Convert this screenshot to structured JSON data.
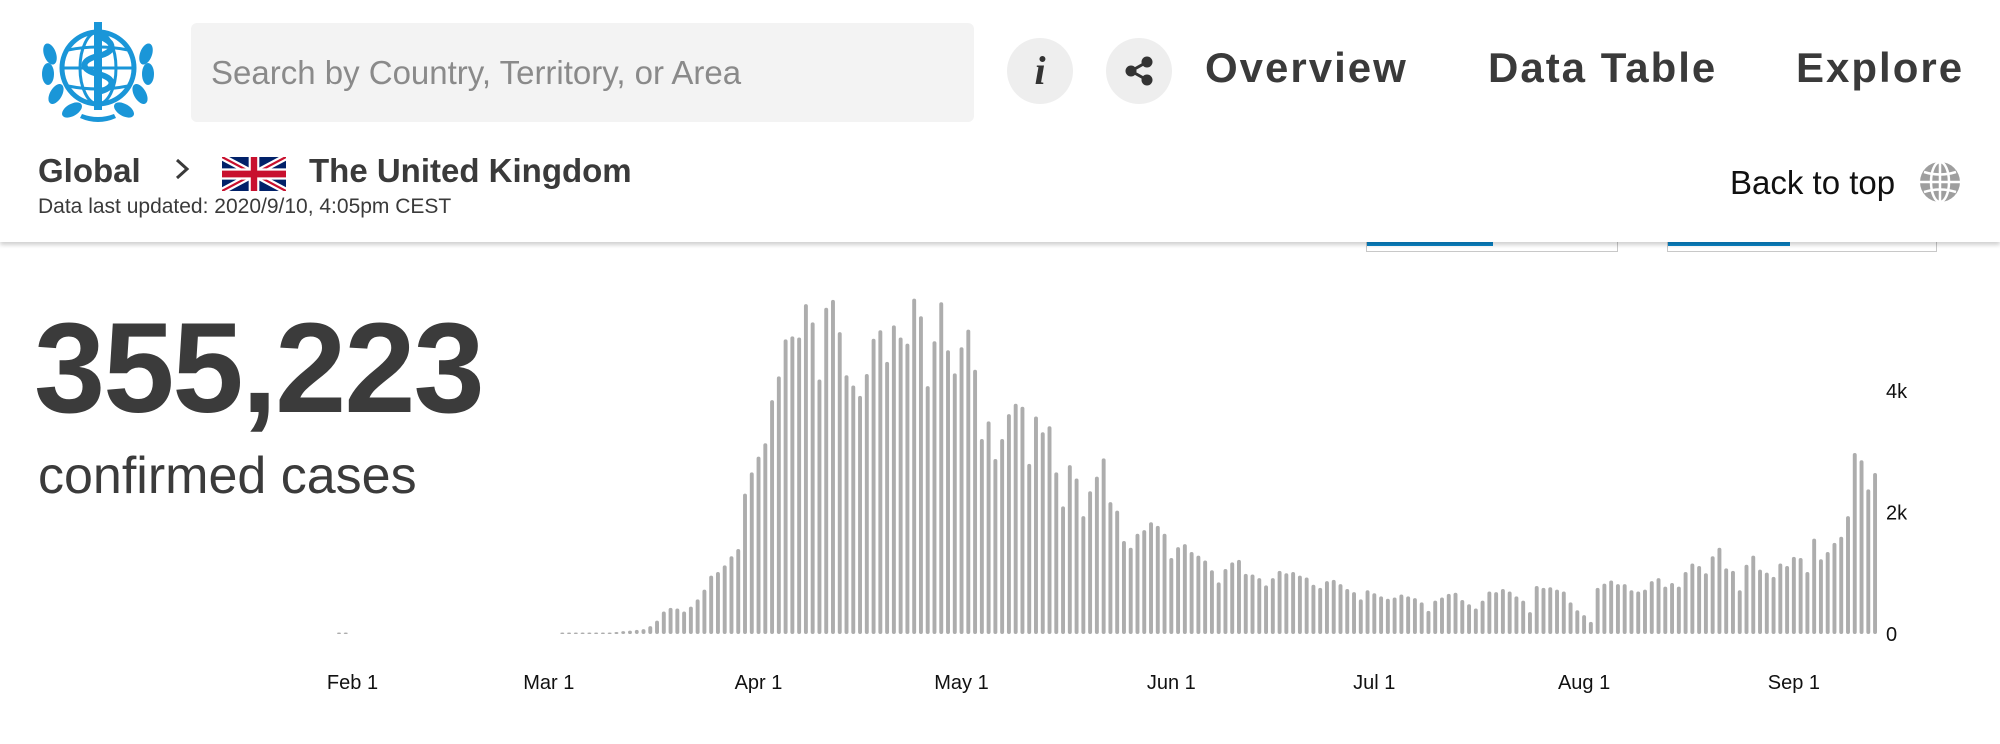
{
  "header": {
    "search_placeholder": "Search by Country, Territory, or Area",
    "nav": [
      {
        "label": "Overview"
      },
      {
        "label": "Data Table"
      },
      {
        "label": "Explore"
      }
    ],
    "icons": {
      "logo": "who-logo-icon",
      "info": "info-icon",
      "share": "share-icon",
      "back_to_top": "globe-icon",
      "separator": "chevron-right-icon",
      "flag": "uk-flag-icon"
    }
  },
  "breadcrumb": {
    "global": "Global",
    "country": "The United Kingdom",
    "updated": "Data last updated: 2020/9/10, 4:05pm CEST"
  },
  "back_to_top": "Back to top",
  "summary": {
    "count": "355,223",
    "caption": "confirmed cases"
  },
  "colors": {
    "accent": "#0a84c6",
    "bar": "#adadad",
    "text": "#3b3b3b"
  },
  "chart_data": {
    "type": "bar",
    "x_start": "2020-01-30",
    "x_end": "2020-09-09",
    "x_ticks": [
      {
        "date": "2020-02-01",
        "label": "Feb 1"
      },
      {
        "date": "2020-03-01",
        "label": "Mar 1"
      },
      {
        "date": "2020-04-01",
        "label": "Apr 1"
      },
      {
        "date": "2020-05-01",
        "label": "May 1"
      },
      {
        "date": "2020-06-01",
        "label": "Jun 1"
      },
      {
        "date": "2020-07-01",
        "label": "Jul 1"
      },
      {
        "date": "2020-08-01",
        "label": "Aug 1"
      },
      {
        "date": "2020-09-01",
        "label": "Sep 1"
      }
    ],
    "y_ticks": [
      {
        "value": 0,
        "label": "0"
      },
      {
        "value": 2000,
        "label": "2k"
      },
      {
        "value": 4000,
        "label": "4k"
      }
    ],
    "ylim": [
      0,
      5500
    ],
    "values": [
      2,
      2,
      0,
      0,
      0,
      0,
      0,
      0,
      0,
      0,
      0,
      0,
      0,
      0,
      0,
      0,
      0,
      0,
      0,
      0,
      0,
      0,
      0,
      0,
      0,
      0,
      0,
      0,
      0,
      0,
      0,
      0,
      0,
      1,
      3,
      5,
      5,
      7,
      12,
      18,
      25,
      33,
      48,
      55,
      68,
      80,
      130,
      220,
      370,
      430,
      420,
      370,
      450,
      570,
      730,
      960,
      1020,
      1130,
      1280,
      1400,
      2310,
      2660,
      2920,
      3140,
      3850,
      4240,
      4850,
      4900,
      4880,
      5430,
      5130,
      4190,
      5370,
      5500,
      4970,
      4260,
      4090,
      3920,
      4280,
      4860,
      5000,
      4480,
      5080,
      4880,
      4780,
      5520,
      5230,
      4080,
      4820,
      5460,
      4670,
      4290,
      4720,
      5010,
      4350,
      3210,
      3500,
      2880,
      3210,
      3620,
      3790,
      3740,
      2800,
      3580,
      3320,
      3420,
      2660,
      2100,
      2780,
      2560,
      1940,
      2350,
      2590,
      2890,
      2170,
      2030,
      1530,
      1420,
      1650,
      1710,
      1840,
      1780,
      1650,
      1250,
      1430,
      1480,
      1350,
      1290,
      1210,
      1050,
      850,
      1070,
      1180,
      1220,
      990,
      980,
      920,
      800,
      920,
      1040,
      1000,
      1020,
      960,
      930,
      810,
      760,
      870,
      890,
      820,
      740,
      690,
      570,
      720,
      670,
      620,
      580,
      600,
      650,
      620,
      590,
      520,
      380,
      550,
      600,
      660,
      680,
      560,
      490,
      420,
      550,
      700,
      690,
      740,
      700,
      620,
      550,
      360,
      790,
      760,
      770,
      730,
      700,
      520,
      390,
      310,
      200,
      760,
      830,
      880,
      820,
      820,
      720,
      700,
      730,
      870,
      920,
      780,
      840,
      780,
      1020,
      1160,
      1120,
      1000,
      1280,
      1420,
      1080,
      1040,
      720,
      1140,
      1290,
      1060,
      1010,
      940,
      1160,
      1120,
      1270,
      1250,
      1020,
      1570,
      1230,
      1350,
      1500,
      1600,
      1940,
      2980,
      2860,
      2380,
      2650
    ]
  }
}
